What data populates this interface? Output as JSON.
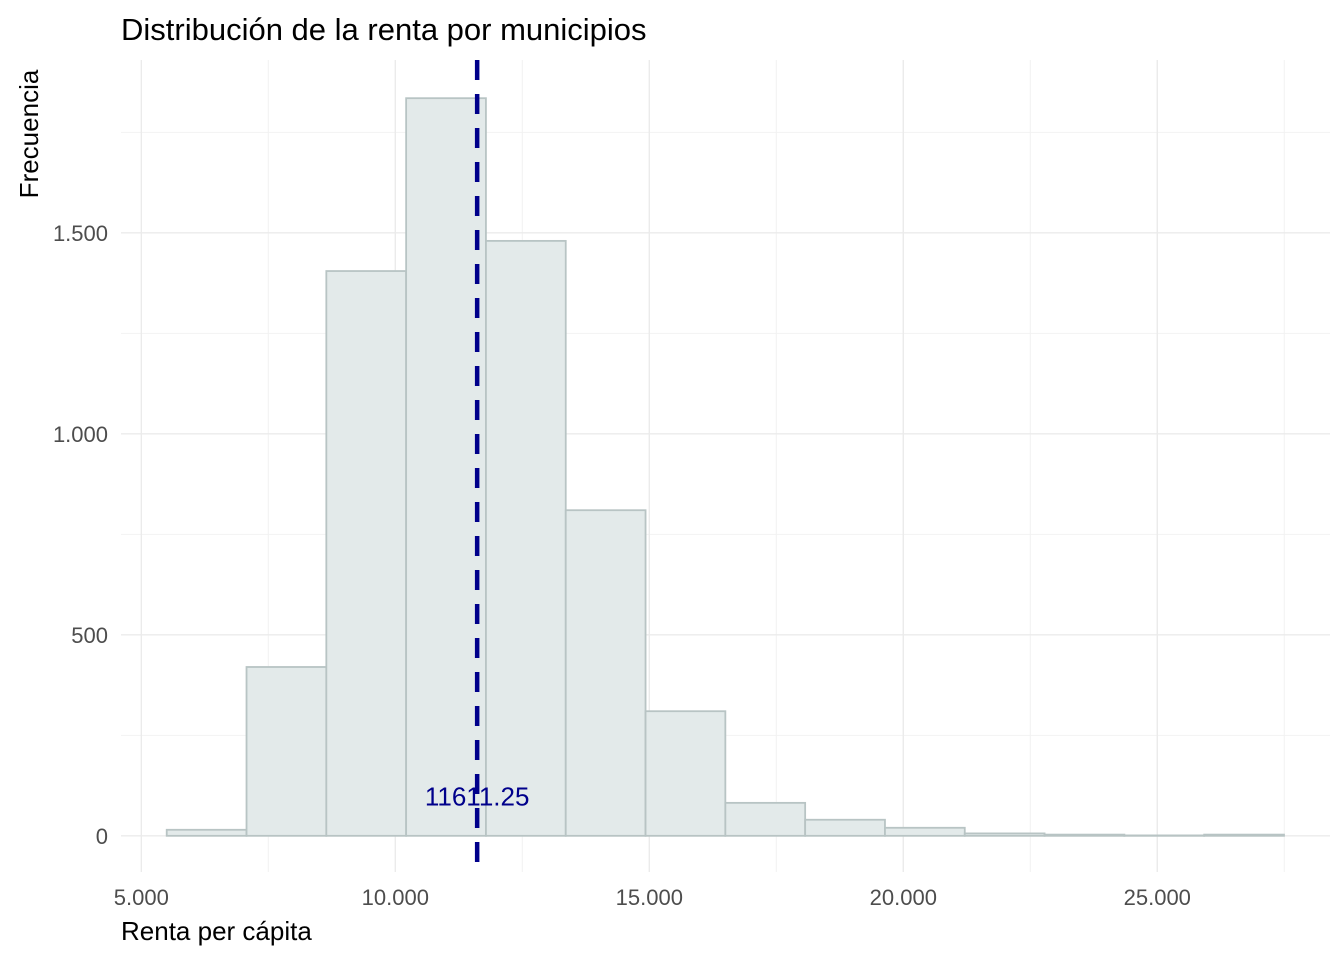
{
  "chart_data": {
    "type": "bar",
    "title": "Distribución de la renta por municipios",
    "xlabel": "Renta per cápita",
    "ylabel": "Frecuencia",
    "xlim": [
      4600,
      28400
    ],
    "ylim": [
      -90,
      1930
    ],
    "x_ticks": [
      5000,
      10000,
      15000,
      20000,
      25000
    ],
    "x_tick_labels": [
      "5.000",
      "10.000",
      "15.000",
      "20.000",
      "25.000"
    ],
    "y_ticks": [
      0,
      500,
      1000,
      1500
    ],
    "y_tick_labels": [
      "0",
      "500",
      "1.000",
      "1.500"
    ],
    "grid": true,
    "bins": [
      {
        "x0": 5500,
        "x1": 7071,
        "count": 15
      },
      {
        "x0": 7071,
        "x1": 8642,
        "count": 420
      },
      {
        "x0": 8642,
        "x1": 10213,
        "count": 1405
      },
      {
        "x0": 10213,
        "x1": 11784,
        "count": 1835
      },
      {
        "x0": 11784,
        "x1": 13355,
        "count": 1480
      },
      {
        "x0": 13355,
        "x1": 14926,
        "count": 810
      },
      {
        "x0": 14926,
        "x1": 16497,
        "count": 310
      },
      {
        "x0": 16497,
        "x1": 18068,
        "count": 82
      },
      {
        "x0": 18068,
        "x1": 19639,
        "count": 40
      },
      {
        "x0": 19639,
        "x1": 21210,
        "count": 20
      },
      {
        "x0": 21210,
        "x1": 22781,
        "count": 6
      },
      {
        "x0": 22781,
        "x1": 24352,
        "count": 3
      },
      {
        "x0": 24352,
        "x1": 25923,
        "count": 1
      },
      {
        "x0": 25923,
        "x1": 27494,
        "count": 3
      }
    ],
    "mean": 11611.25,
    "mean_label": "11611.25",
    "colors": {
      "bar_fill": "#e3eaea",
      "bar_stroke": "#b8c4c4",
      "mean_line": "#00008b",
      "grid": "#ebebeb"
    }
  }
}
